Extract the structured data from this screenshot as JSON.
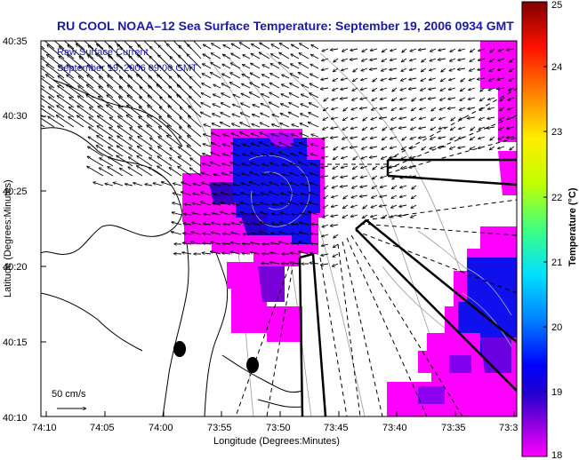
{
  "title": "RU COOL  NOAA–12  Sea Surface Temperature:  September 19, 2006 0934 GMT",
  "legend": {
    "current_label": "Raw Surface Current",
    "current_time": "September 19, 2006 09:00 GMT",
    "scale_label": "50 cm/s"
  },
  "x_axis": {
    "label": "Longitude (Degrees:Minutes)",
    "ticks": [
      "74:10",
      "74:05",
      "74:00",
      "73:55",
      "73:50",
      "73:45",
      "73:40",
      "73:35",
      "73:3"
    ]
  },
  "y_axis": {
    "label": "Latitude (Degrees:Minutes)",
    "ticks": [
      "40:35",
      "40:30",
      "40:25",
      "40:20",
      "40:15",
      "40:10"
    ]
  },
  "colorbar": {
    "label": "Temperature (°C)",
    "ticks": [
      "25",
      "24",
      "23",
      "22",
      "21",
      "20",
      "19",
      "18"
    ],
    "min": 18,
    "max": 25,
    "colors": [
      "#ff00ff",
      "#3a00c8",
      "#0000ff",
      "#0090ff",
      "#00ffff",
      "#80ff80",
      "#ffff00",
      "#ff8000",
      "#ff0000",
      "#800000"
    ]
  },
  "colors": {
    "title": "#1a1aa8",
    "sst_cold": "#0000ff",
    "sst_warm_edge": "#ff00ff",
    "land_line": "#000000",
    "bathymetry": "#999999"
  }
}
